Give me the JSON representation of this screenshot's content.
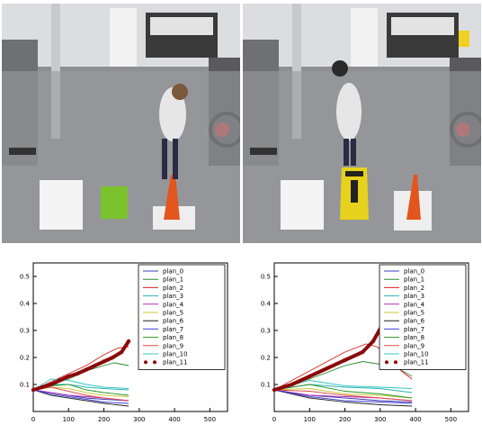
{
  "colors": {
    "plan_0": "#3b3bb3",
    "plan_1": "#2e8b2e",
    "plan_2": "#d62020",
    "plan_3": "#27b3b3",
    "plan_4": "#b32fb3",
    "plan_5": "#c9c93a",
    "plan_6": "#222222",
    "plan_7": "#3f3fd6",
    "plan_8": "#259625",
    "plan_9": "#e04a4a",
    "plan_10": "#34c4c4",
    "plan_11": "#8b0a0a"
  },
  "photos": {
    "left": {
      "items": [
        "floor-mat",
        "green-box",
        "traffic-cone"
      ]
    },
    "right": {
      "items": [
        "floor-mat",
        "caution-sign",
        "traffic-cone"
      ]
    }
  },
  "chart_data": [
    {
      "type": "line",
      "title": "",
      "xlabel": "",
      "ylabel": "",
      "xlim": [
        0,
        550
      ],
      "ylim": [
        0,
        0.55
      ],
      "x_ticks": [
        "0",
        "100",
        "200",
        "300",
        "400",
        "500"
      ],
      "y_ticks": [
        "0.1",
        "0.2",
        "0.3",
        "0.4",
        "0.5"
      ],
      "grid": false,
      "legend_position": "top-right",
      "series": [
        {
          "name": "plan_0",
          "x": [
            0,
            50,
            100,
            150,
            200,
            270
          ],
          "values": [
            0.08,
            0.07,
            0.06,
            0.05,
            0.045,
            0.04
          ]
        },
        {
          "name": "plan_1",
          "x": [
            0,
            50,
            100,
            150,
            200,
            230,
            270
          ],
          "values": [
            0.08,
            0.1,
            0.12,
            0.15,
            0.17,
            0.18,
            0.17
          ]
        },
        {
          "name": "plan_2",
          "x": [
            0,
            50,
            100,
            150,
            200,
            240,
            270
          ],
          "values": [
            0.08,
            0.11,
            0.14,
            0.17,
            0.21,
            0.235,
            0.24
          ]
        },
        {
          "name": "plan_3",
          "x": [
            0,
            50,
            100,
            150,
            200,
            270
          ],
          "values": [
            0.08,
            0.1,
            0.1,
            0.09,
            0.085,
            0.08
          ]
        },
        {
          "name": "plan_4",
          "x": [
            0,
            50,
            100,
            150,
            200,
            270
          ],
          "values": [
            0.08,
            0.07,
            0.06,
            0.055,
            0.05,
            0.04
          ]
        },
        {
          "name": "plan_5",
          "x": [
            0,
            50,
            100,
            150,
            200,
            270
          ],
          "values": [
            0.08,
            0.09,
            0.085,
            0.07,
            0.06,
            0.055
          ]
        },
        {
          "name": "plan_6",
          "x": [
            0,
            50,
            100,
            150,
            200,
            270
          ],
          "values": [
            0.08,
            0.06,
            0.05,
            0.04,
            0.03,
            0.02
          ]
        },
        {
          "name": "plan_7",
          "x": [
            0,
            50,
            100,
            150,
            200,
            270
          ],
          "values": [
            0.08,
            0.065,
            0.055,
            0.045,
            0.035,
            0.03
          ]
        },
        {
          "name": "plan_8",
          "x": [
            0,
            50,
            100,
            150,
            200,
            270
          ],
          "values": [
            0.08,
            0.095,
            0.1,
            0.08,
            0.07,
            0.06
          ]
        },
        {
          "name": "plan_9",
          "x": [
            0,
            50,
            100,
            150,
            200,
            270
          ],
          "values": [
            0.08,
            0.09,
            0.075,
            0.06,
            0.05,
            0.04
          ]
        },
        {
          "name": "plan_10",
          "x": [
            0,
            50,
            100,
            150,
            200,
            270
          ],
          "values": [
            0.08,
            0.12,
            0.115,
            0.1,
            0.09,
            0.085
          ]
        },
        {
          "name": "plan_11",
          "x": [
            0,
            25,
            50,
            75,
            100,
            125,
            150,
            175,
            200,
            225,
            250,
            270
          ],
          "values": [
            0.08,
            0.09,
            0.1,
            0.115,
            0.13,
            0.14,
            0.155,
            0.17,
            0.185,
            0.2,
            0.22,
            0.26
          ]
        }
      ]
    },
    {
      "type": "line",
      "title": "",
      "xlabel": "",
      "ylabel": "",
      "xlim": [
        0,
        550
      ],
      "ylim": [
        0,
        0.55
      ],
      "x_ticks": [
        "0",
        "100",
        "200",
        "300",
        "400",
        "500"
      ],
      "y_ticks": [
        "0.1",
        "0.2",
        "0.3",
        "0.4",
        "0.5"
      ],
      "grid": false,
      "legend_position": "top-right",
      "series": [
        {
          "name": "plan_0",
          "x": [
            0,
            100,
            200,
            300,
            390
          ],
          "values": [
            0.08,
            0.06,
            0.05,
            0.04,
            0.035
          ]
        },
        {
          "name": "plan_1",
          "x": [
            0,
            100,
            200,
            250,
            300,
            350,
            390
          ],
          "values": [
            0.08,
            0.12,
            0.17,
            0.185,
            0.175,
            0.16,
            0.13
          ]
        },
        {
          "name": "plan_2",
          "x": [
            0,
            100,
            200,
            260,
            290,
            330,
            360,
            390
          ],
          "values": [
            0.08,
            0.15,
            0.22,
            0.25,
            0.24,
            0.2,
            0.15,
            0.12
          ]
        },
        {
          "name": "plan_3",
          "x": [
            0,
            100,
            200,
            300,
            390
          ],
          "values": [
            0.08,
            0.1,
            0.09,
            0.085,
            0.07
          ]
        },
        {
          "name": "plan_4",
          "x": [
            0,
            100,
            200,
            300,
            390
          ],
          "values": [
            0.08,
            0.06,
            0.055,
            0.05,
            0.04
          ]
        },
        {
          "name": "plan_5",
          "x": [
            0,
            100,
            200,
            300,
            390
          ],
          "values": [
            0.08,
            0.085,
            0.065,
            0.06,
            0.05
          ]
        },
        {
          "name": "plan_6",
          "x": [
            0,
            100,
            200,
            300,
            390
          ],
          "values": [
            0.08,
            0.05,
            0.035,
            0.025,
            0.02
          ]
        },
        {
          "name": "plan_7",
          "x": [
            0,
            100,
            200,
            300,
            390
          ],
          "values": [
            0.08,
            0.055,
            0.04,
            0.035,
            0.03
          ]
        },
        {
          "name": "plan_8",
          "x": [
            0,
            100,
            200,
            300,
            390
          ],
          "values": [
            0.08,
            0.1,
            0.075,
            0.065,
            0.05
          ]
        },
        {
          "name": "plan_9",
          "x": [
            0,
            100,
            200,
            300,
            390
          ],
          "values": [
            0.08,
            0.075,
            0.06,
            0.05,
            0.04
          ]
        },
        {
          "name": "plan_10",
          "x": [
            0,
            100,
            200,
            300,
            390
          ],
          "values": [
            0.08,
            0.115,
            0.095,
            0.09,
            0.085
          ]
        },
        {
          "name": "plan_11",
          "x": [
            0,
            50,
            100,
            150,
            200,
            250,
            280,
            310,
            340,
            370,
            390
          ],
          "values": [
            0.08,
            0.1,
            0.13,
            0.16,
            0.19,
            0.22,
            0.26,
            0.33,
            0.41,
            0.49,
            0.52
          ]
        }
      ]
    }
  ]
}
